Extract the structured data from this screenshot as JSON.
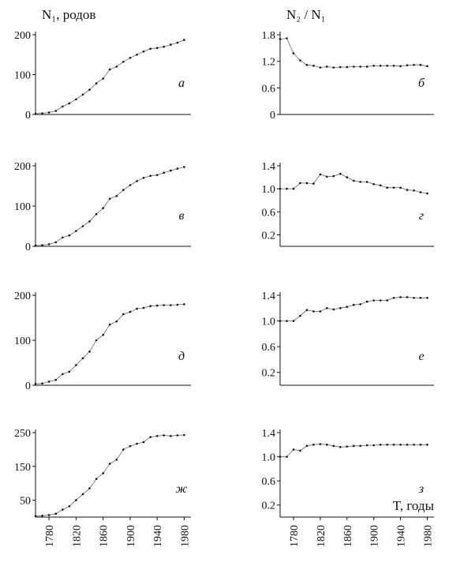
{
  "chart_data": [
    {
      "id": "a",
      "type": "line",
      "letter": "а",
      "ylabel": "N₁, родов",
      "ylim": [
        0,
        200
      ],
      "yticks": [
        0,
        100,
        200
      ],
      "xlim": [
        1760,
        1990
      ],
      "x": [
        1760,
        1770,
        1780,
        1790,
        1800,
        1810,
        1820,
        1830,
        1840,
        1850,
        1860,
        1870,
        1880,
        1890,
        1900,
        1910,
        1920,
        1930,
        1940,
        1950,
        1960,
        1970,
        1980
      ],
      "values": [
        2,
        3,
        5,
        9,
        20,
        28,
        38,
        50,
        62,
        78,
        90,
        113,
        120,
        132,
        142,
        150,
        158,
        165,
        167,
        170,
        175,
        180,
        187
      ]
    },
    {
      "id": "b",
      "type": "line",
      "letter": "б",
      "ylabel": "N₂ / N₁",
      "ylim": [
        0,
        1.8
      ],
      "yticks": [
        "0",
        "0.6",
        "1.2",
        "1.8"
      ],
      "xlim": [
        1760,
        1990
      ],
      "x": [
        1760,
        1770,
        1780,
        1790,
        1800,
        1810,
        1820,
        1830,
        1840,
        1850,
        1860,
        1870,
        1880,
        1890,
        1900,
        1910,
        1920,
        1930,
        1940,
        1950,
        1960,
        1970,
        1980
      ],
      "values": [
        1.7,
        1.72,
        1.38,
        1.22,
        1.12,
        1.1,
        1.06,
        1.08,
        1.06,
        1.07,
        1.07,
        1.08,
        1.08,
        1.08,
        1.1,
        1.1,
        1.1,
        1.1,
        1.09,
        1.11,
        1.12,
        1.12,
        1.09
      ]
    },
    {
      "id": "v",
      "type": "line",
      "letter": "в",
      "ylim": [
        0,
        200
      ],
      "yticks": [
        0,
        100,
        200
      ],
      "xlim": [
        1760,
        1990
      ],
      "x": [
        1760,
        1770,
        1780,
        1790,
        1800,
        1810,
        1820,
        1830,
        1840,
        1850,
        1860,
        1870,
        1880,
        1890,
        1900,
        1910,
        1920,
        1930,
        1940,
        1950,
        1960,
        1970,
        1980
      ],
      "values": [
        2,
        3,
        5,
        10,
        22,
        27,
        38,
        50,
        62,
        80,
        95,
        118,
        125,
        140,
        152,
        162,
        170,
        175,
        177,
        183,
        188,
        193,
        197
      ]
    },
    {
      "id": "g",
      "type": "line",
      "letter": "г",
      "ylim": [
        0,
        1.4
      ],
      "yticks": [
        "0.2",
        "0.6",
        "1.0",
        "1.4"
      ],
      "xlim": [
        1760,
        1990
      ],
      "x": [
        1760,
        1770,
        1780,
        1790,
        1800,
        1810,
        1820,
        1830,
        1840,
        1850,
        1860,
        1870,
        1880,
        1890,
        1900,
        1910,
        1920,
        1930,
        1940,
        1950,
        1960,
        1970,
        1980
      ],
      "values": [
        1.0,
        1.0,
        1.0,
        1.1,
        1.1,
        1.09,
        1.25,
        1.21,
        1.22,
        1.26,
        1.2,
        1.14,
        1.12,
        1.12,
        1.08,
        1.06,
        1.02,
        1.02,
        1.02,
        0.98,
        0.97,
        0.94,
        0.92
      ]
    },
    {
      "id": "d",
      "type": "line",
      "letter": "д",
      "ylim": [
        0,
        200
      ],
      "yticks": [
        0,
        100,
        200
      ],
      "xlim": [
        1760,
        1990
      ],
      "x": [
        1760,
        1770,
        1780,
        1790,
        1800,
        1810,
        1820,
        1830,
        1840,
        1850,
        1860,
        1870,
        1880,
        1890,
        1900,
        1910,
        1920,
        1930,
        1940,
        1950,
        1960,
        1970,
        1980
      ],
      "values": [
        3,
        4,
        8,
        12,
        25,
        30,
        45,
        60,
        75,
        100,
        112,
        135,
        142,
        158,
        163,
        170,
        172,
        176,
        177,
        178,
        178,
        179,
        180
      ]
    },
    {
      "id": "e",
      "type": "line",
      "letter": "е",
      "ylim": [
        0,
        1.4
      ],
      "yticks": [
        "0.2",
        "0.6",
        "1.0",
        "1.4"
      ],
      "xlim": [
        1760,
        1990
      ],
      "x": [
        1760,
        1770,
        1780,
        1790,
        1800,
        1810,
        1820,
        1830,
        1840,
        1850,
        1860,
        1870,
        1880,
        1890,
        1900,
        1910,
        1920,
        1930,
        1940,
        1950,
        1960,
        1970,
        1980
      ],
      "values": [
        1.0,
        1.0,
        1.0,
        1.08,
        1.17,
        1.15,
        1.15,
        1.2,
        1.18,
        1.2,
        1.22,
        1.25,
        1.26,
        1.3,
        1.32,
        1.32,
        1.32,
        1.36,
        1.37,
        1.37,
        1.36,
        1.36,
        1.36
      ]
    },
    {
      "id": "zh",
      "type": "line",
      "letter": "ж",
      "ylim": [
        0,
        250
      ],
      "yticks": [
        50,
        150,
        250
      ],
      "xlim": [
        1760,
        1990
      ],
      "xticks": [
        1780,
        1820,
        1860,
        1900,
        1940,
        1980
      ],
      "x": [
        1760,
        1770,
        1780,
        1790,
        1800,
        1810,
        1820,
        1830,
        1840,
        1850,
        1860,
        1870,
        1880,
        1890,
        1900,
        1910,
        1920,
        1930,
        1940,
        1950,
        1960,
        1970,
        1980
      ],
      "values": [
        3,
        4,
        6,
        10,
        22,
        32,
        50,
        68,
        85,
        113,
        130,
        158,
        170,
        200,
        210,
        217,
        222,
        237,
        240,
        242,
        240,
        242,
        243
      ]
    },
    {
      "id": "z",
      "type": "line",
      "letter": "з",
      "xlabel": "T, годы",
      "ylim": [
        0,
        1.4
      ],
      "yticks": [
        "0.2",
        "0.6",
        "1.0",
        "1.4"
      ],
      "xlim": [
        1760,
        1990
      ],
      "xticks": [
        1780,
        1820,
        1860,
        1900,
        1940,
        1980
      ],
      "x": [
        1760,
        1770,
        1780,
        1790,
        1800,
        1810,
        1820,
        1830,
        1840,
        1850,
        1860,
        1870,
        1880,
        1890,
        1900,
        1910,
        1920,
        1930,
        1940,
        1950,
        1960,
        1970,
        1980
      ],
      "values": [
        1.0,
        1.0,
        1.12,
        1.1,
        1.18,
        1.2,
        1.21,
        1.2,
        1.18,
        1.16,
        1.17,
        1.18,
        1.18,
        1.19,
        1.19,
        1.2,
        1.2,
        1.2,
        1.2,
        1.2,
        1.2,
        1.2,
        1.2
      ]
    }
  ]
}
